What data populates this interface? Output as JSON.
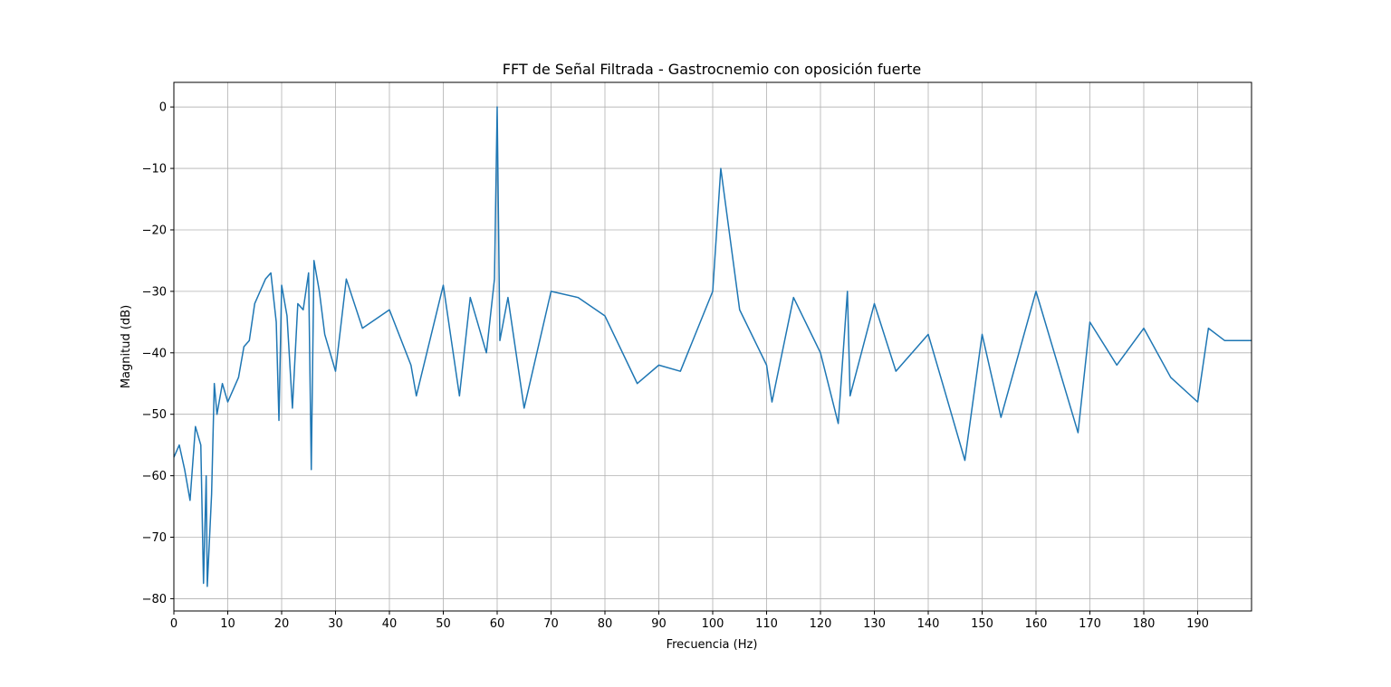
{
  "chart_data": {
    "type": "line",
    "title": "FFT de Señal Filtrada - Gastrocnemio con oposición fuerte",
    "xlabel": "Frecuencia (Hz)",
    "ylabel": "Magnitud (dB)",
    "xlim": [
      0,
      200
    ],
    "ylim": [
      -82,
      4
    ],
    "xticks": [
      0,
      10,
      20,
      30,
      40,
      50,
      60,
      70,
      80,
      90,
      100,
      110,
      120,
      130,
      140,
      150,
      160,
      170,
      180,
      190
    ],
    "yticks": [
      0,
      -10,
      -20,
      -30,
      -40,
      -50,
      -60,
      -70,
      -80
    ],
    "xtick_labels": [
      "0",
      "10",
      "20",
      "30",
      "40",
      "50",
      "60",
      "70",
      "80",
      "90",
      "100",
      "110",
      "120",
      "130",
      "140",
      "150",
      "160",
      "170",
      "180",
      "190"
    ],
    "ytick_labels": [
      "0",
      "−10",
      "−20",
      "−30",
      "−40",
      "−50",
      "−60",
      "−70",
      "−80"
    ],
    "grid": true,
    "line_color": "#1f77b4",
    "series": [
      {
        "x": [
          0,
          1,
          2,
          3,
          4,
          5,
          5.5,
          6,
          6.2,
          7,
          7.5,
          8,
          9,
          10,
          11,
          12,
          13,
          14,
          15,
          16,
          17,
          18,
          19,
          19.5,
          20,
          21,
          22,
          23,
          24,
          25,
          25.5,
          26,
          27,
          28,
          30,
          32,
          35,
          40,
          44,
          45,
          50,
          53,
          55,
          58,
          59.5,
          60,
          60.5,
          62,
          65,
          70,
          75,
          80,
          86,
          90,
          94,
          100,
          101.5,
          105,
          110,
          111,
          115,
          120,
          123.3,
          125,
          125.5,
          130,
          134,
          140,
          143,
          146.8,
          150,
          153.5,
          160,
          167.8,
          170,
          175,
          180,
          185,
          190,
          192,
          195,
          200
        ],
        "y": [
          -57,
          -55,
          -59,
          -64,
          -52,
          -55,
          -77.5,
          -60,
          -78,
          -63,
          -45,
          -50,
          -45,
          -48,
          -46,
          -44,
          -39,
          -38,
          -32,
          -30,
          -28,
          -27,
          -35,
          -51,
          -29,
          -34,
          -49,
          -32,
          -33,
          -27,
          -59,
          -25,
          -30,
          -37,
          -43,
          -28,
          -36,
          -33,
          -42,
          -47,
          -29,
          -47,
          -31,
          -40,
          -28,
          0,
          -38,
          -31,
          -49,
          -30,
          -31,
          -34,
          -45,
          -42,
          -43,
          -30,
          -10,
          -33,
          -42,
          -48,
          -31,
          -40,
          -51.5,
          -30,
          -47,
          -32,
          -43,
          -37,
          -46,
          -57.5,
          -37,
          -50.5,
          -30,
          -53,
          -35,
          -42,
          -36,
          -44,
          -48,
          -36,
          -38,
          -38
        ]
      }
    ]
  }
}
